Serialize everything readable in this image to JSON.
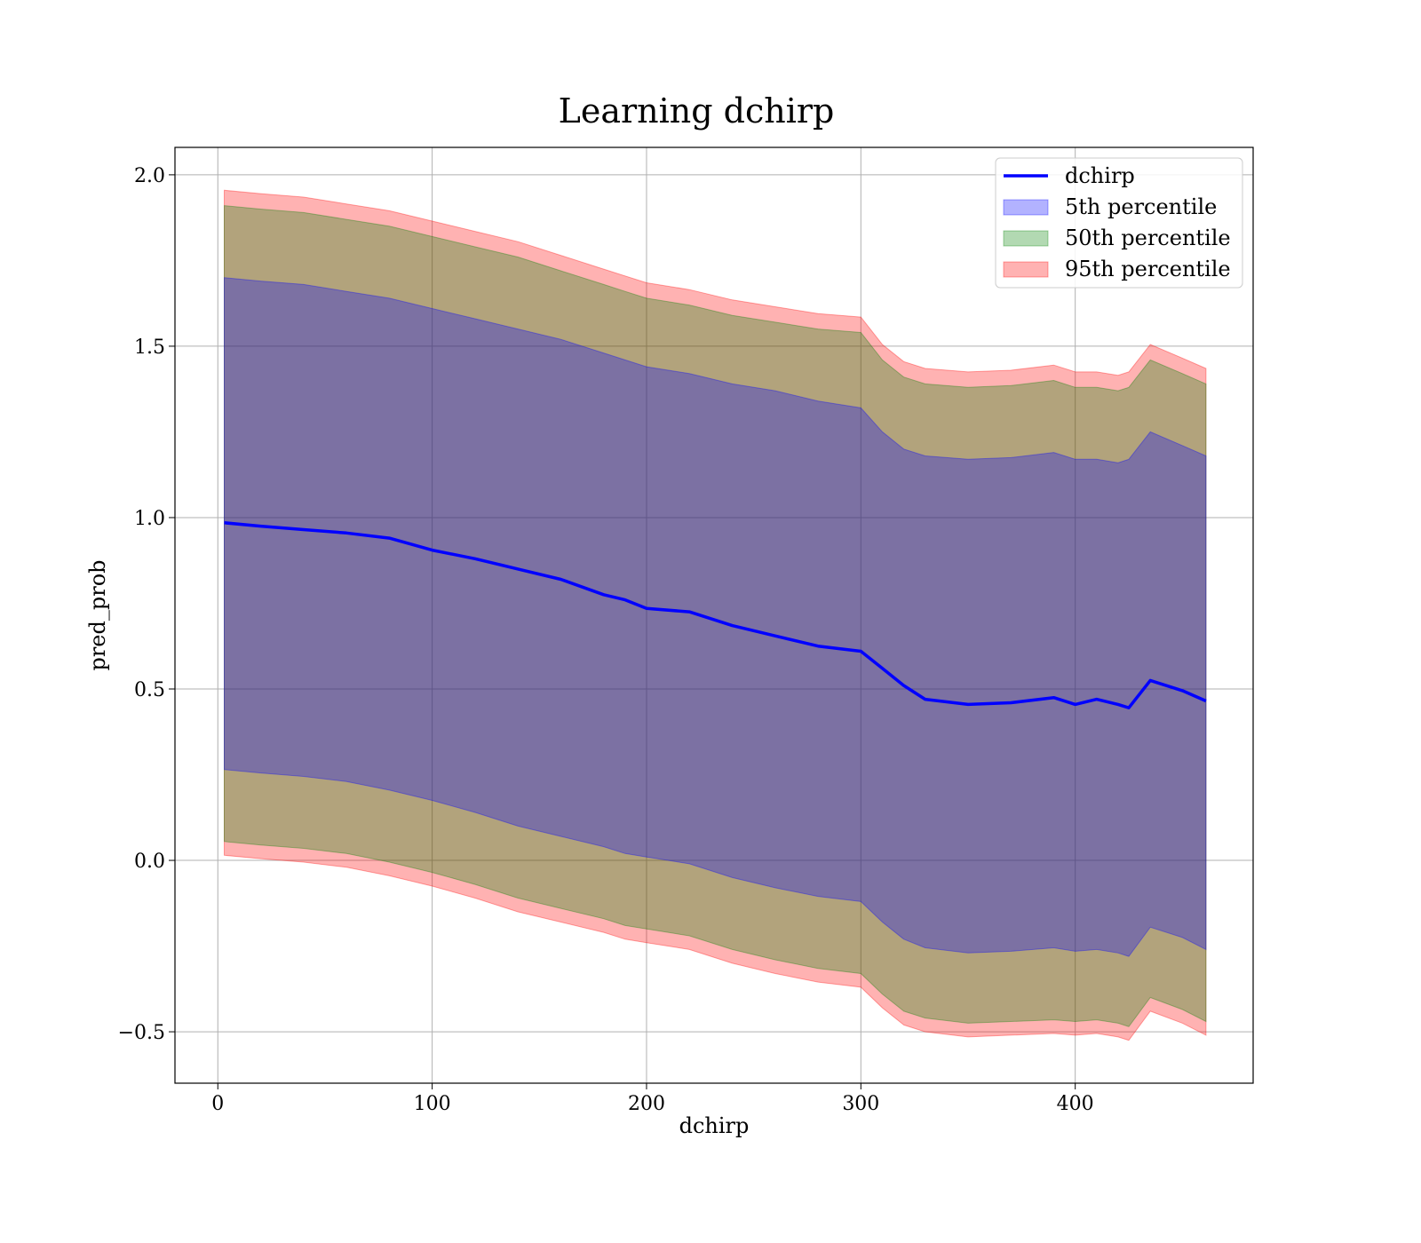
{
  "chart_data": {
    "type": "line",
    "title": "Learning dchirp",
    "xlabel": "dchirp",
    "ylabel": "pred_prob",
    "xlim": [
      -20,
      483
    ],
    "ylim": [
      -0.65,
      2.08
    ],
    "xticks": [
      0,
      100,
      200,
      300,
      400
    ],
    "yticks": [
      -0.5,
      0.0,
      0.5,
      1.0,
      1.5,
      2.0
    ],
    "xtick_labels": [
      "0",
      "100",
      "200",
      "300",
      "400"
    ],
    "ytick_labels": [
      "−0.5",
      "0.0",
      "0.5",
      "1.0",
      "1.5",
      "2.0"
    ],
    "grid": true,
    "legend_position": "top-right",
    "x": [
      3,
      20,
      40,
      60,
      80,
      100,
      120,
      140,
      160,
      180,
      190,
      200,
      220,
      240,
      260,
      280,
      300,
      310,
      320,
      330,
      350,
      370,
      390,
      400,
      410,
      420,
      425,
      435,
      450,
      461
    ],
    "series": [
      {
        "name": "dchirp",
        "kind": "line",
        "color": "#0000ff",
        "values": [
          0.985,
          0.975,
          0.965,
          0.955,
          0.94,
          0.905,
          0.88,
          0.85,
          0.82,
          0.775,
          0.76,
          0.735,
          0.725,
          0.685,
          0.655,
          0.625,
          0.61,
          0.56,
          0.51,
          0.47,
          0.455,
          0.46,
          0.475,
          0.455,
          0.47,
          0.455,
          0.445,
          0.525,
          0.495,
          0.465
        ]
      },
      {
        "name": "5th percentile",
        "kind": "band",
        "color": "#0000ff",
        "upper": [
          1.7,
          1.69,
          1.68,
          1.66,
          1.64,
          1.61,
          1.58,
          1.55,
          1.52,
          1.48,
          1.46,
          1.44,
          1.42,
          1.39,
          1.37,
          1.34,
          1.32,
          1.25,
          1.2,
          1.18,
          1.17,
          1.175,
          1.19,
          1.17,
          1.17,
          1.16,
          1.17,
          1.25,
          1.21,
          1.18
        ],
        "lower": [
          0.265,
          0.255,
          0.245,
          0.23,
          0.205,
          0.175,
          0.14,
          0.1,
          0.07,
          0.04,
          0.02,
          0.01,
          -0.01,
          -0.05,
          -0.08,
          -0.105,
          -0.12,
          -0.18,
          -0.23,
          -0.255,
          -0.27,
          -0.265,
          -0.255,
          -0.265,
          -0.26,
          -0.27,
          -0.28,
          -0.195,
          -0.225,
          -0.26
        ]
      },
      {
        "name": "50th percentile",
        "kind": "band",
        "color": "#008000",
        "upper": [
          1.91,
          1.9,
          1.89,
          1.87,
          1.85,
          1.82,
          1.79,
          1.76,
          1.72,
          1.68,
          1.66,
          1.64,
          1.62,
          1.59,
          1.57,
          1.55,
          1.54,
          1.46,
          1.41,
          1.39,
          1.38,
          1.385,
          1.4,
          1.38,
          1.38,
          1.37,
          1.38,
          1.46,
          1.42,
          1.39
        ],
        "lower": [
          0.055,
          0.045,
          0.035,
          0.02,
          -0.005,
          -0.035,
          -0.07,
          -0.11,
          -0.14,
          -0.17,
          -0.19,
          -0.2,
          -0.22,
          -0.26,
          -0.29,
          -0.315,
          -0.33,
          -0.39,
          -0.44,
          -0.46,
          -0.475,
          -0.47,
          -0.465,
          -0.47,
          -0.465,
          -0.475,
          -0.485,
          -0.4,
          -0.435,
          -0.47
        ]
      },
      {
        "name": "95th percentile",
        "kind": "band",
        "color": "#ff0000",
        "upper": [
          1.955,
          1.945,
          1.935,
          1.915,
          1.895,
          1.865,
          1.835,
          1.805,
          1.765,
          1.725,
          1.705,
          1.685,
          1.665,
          1.635,
          1.615,
          1.595,
          1.585,
          1.505,
          1.455,
          1.435,
          1.425,
          1.43,
          1.445,
          1.425,
          1.425,
          1.415,
          1.425,
          1.505,
          1.465,
          1.435
        ],
        "lower": [
          0.015,
          0.005,
          -0.005,
          -0.02,
          -0.045,
          -0.075,
          -0.11,
          -0.15,
          -0.18,
          -0.21,
          -0.23,
          -0.24,
          -0.26,
          -0.3,
          -0.33,
          -0.355,
          -0.37,
          -0.43,
          -0.48,
          -0.5,
          -0.515,
          -0.51,
          -0.505,
          -0.51,
          -0.505,
          -0.515,
          -0.525,
          -0.44,
          -0.475,
          -0.51
        ]
      }
    ]
  }
}
